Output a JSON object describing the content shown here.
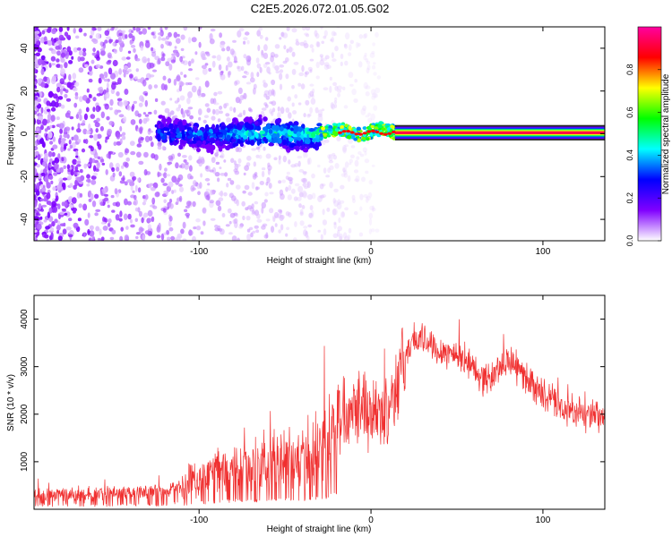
{
  "title": "C2E5.2026.072.01.05.G02",
  "chart_data": [
    {
      "type": "heatmap",
      "xlabel": "Height of straight line (km)",
      "ylabel": "Frequency (Hz)",
      "xlim": [
        -196,
        136
      ],
      "ylim": [
        -50,
        50
      ],
      "x_ticks": [
        -100,
        0,
        100
      ],
      "y_ticks": [
        -40,
        -20,
        0,
        20,
        40
      ],
      "x_tick_labels": [
        "-100",
        "0",
        "100"
      ],
      "y_tick_labels": [
        "-40",
        "-20",
        "0",
        "20",
        "40"
      ],
      "colorbar": {
        "label": "Normalized spectral amplitude",
        "range": [
          0,
          1
        ],
        "ticks": [
          0.0,
          0.2,
          0.4,
          0.6,
          0.8
        ],
        "tick_labels": [
          "0.0",
          "0.2",
          "0.4",
          "0.6",
          "0.8"
        ],
        "colors": [
          "#ffffff",
          "#8000ff",
          "#0000ff",
          "#00ffff",
          "#00ff00",
          "#ffff00",
          "#ff0000",
          "#ff00a0"
        ]
      },
      "features": [
        {
          "name": "noise-scatter",
          "x_range": [
            -196,
            5
          ],
          "freq_range": [
            -50,
            50
          ],
          "amplitude": 0.12
        },
        {
          "name": "emerging-signal",
          "x_range": [
            -125,
            -30
          ],
          "freq_center": 0,
          "freq_halfwidth": 7,
          "amplitude": 0.35
        },
        {
          "name": "converging-signal",
          "x_range": [
            -30,
            14
          ],
          "freq_center": 1,
          "freq_halfwidth": 3,
          "amplitude": 0.55
        },
        {
          "name": "steady-carrier",
          "x_range": [
            14,
            136
          ],
          "freq_center": 0.5,
          "freq_halfwidth": 1.5,
          "amplitude": 0.92
        }
      ]
    },
    {
      "type": "line",
      "xlabel": "Height of straight line (km)",
      "ylabel": "SNR (10 * v/v)",
      "xlim": [
        -196,
        136
      ],
      "ylim": [
        0,
        4500
      ],
      "x_ticks": [
        -100,
        0,
        100
      ],
      "y_ticks": [
        1000,
        2000,
        3000,
        4000
      ],
      "x_tick_labels": [
        "-100",
        "0",
        "100"
      ],
      "y_tick_labels": [
        "1000",
        "2000",
        "3000",
        "4000"
      ],
      "color": "#f03030",
      "series": [
        {
          "name": "SNR",
          "x": [
            -196,
            -180,
            -160,
            -140,
            -120,
            -110,
            -100,
            -90,
            -80,
            -70,
            -60,
            -50,
            -40,
            -30,
            -25,
            -20,
            -15,
            -10,
            -5,
            0,
            5,
            10,
            15,
            20,
            25,
            30,
            35,
            40,
            45,
            50,
            55,
            60,
            65,
            70,
            75,
            80,
            85,
            90,
            95,
            100,
            110,
            120,
            136
          ],
          "y": [
            300,
            320,
            340,
            370,
            400,
            500,
            650,
            800,
            900,
            950,
            1000,
            1050,
            1150,
            1250,
            1500,
            1900,
            2100,
            2300,
            2250,
            2050,
            1900,
            2200,
            2700,
            3200,
            3600,
            3550,
            3500,
            3350,
            3300,
            3250,
            3150,
            2950,
            2750,
            2750,
            3000,
            3150,
            2950,
            2800,
            2600,
            2400,
            2150,
            2000,
            1900
          ]
        }
      ]
    }
  ]
}
